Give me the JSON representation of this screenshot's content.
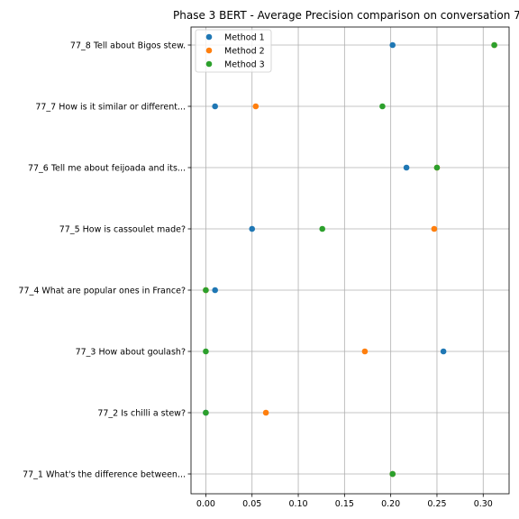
{
  "chart_data": {
    "type": "scatter",
    "title": "Phase 3 BERT - Average Precision comparison on conversation 77",
    "xlabel": "",
    "ylabel": "",
    "xlim": [
      -0.016,
      0.328
    ],
    "xticks": [
      "0.00",
      "0.05",
      "0.10",
      "0.15",
      "0.20",
      "0.25",
      "0.30"
    ],
    "xtick_values": [
      0.0,
      0.05,
      0.1,
      0.15,
      0.2,
      0.25,
      0.3
    ],
    "categories": [
      "77_8 Tell about Bigos stew.",
      "77_7 How is it similar or different...",
      "77_6 Tell me about feijoada and its...",
      "77_5 How is cassoulet made?",
      "77_4 What are popular ones in France?",
      "77_3 How about goulash?",
      "77_2 Is chilli a stew?",
      "77_1 What's the difference between..."
    ],
    "grid": true,
    "legend_position": "top-left",
    "series": [
      {
        "name": "Method 1",
        "color": "#1f77b4",
        "values": [
          0.202,
          0.01,
          0.217,
          0.05,
          0.01,
          0.257,
          0.0,
          0.202
        ]
      },
      {
        "name": "Method 2",
        "color": "#ff7f0e",
        "values": [
          0.312,
          0.054,
          0.25,
          0.247,
          0.0,
          0.172,
          0.065,
          0.202
        ]
      },
      {
        "name": "Method 3",
        "color": "#2ca02c",
        "values": [
          0.312,
          0.191,
          0.25,
          0.126,
          0.0,
          0.0,
          0.0,
          0.202
        ]
      }
    ]
  }
}
